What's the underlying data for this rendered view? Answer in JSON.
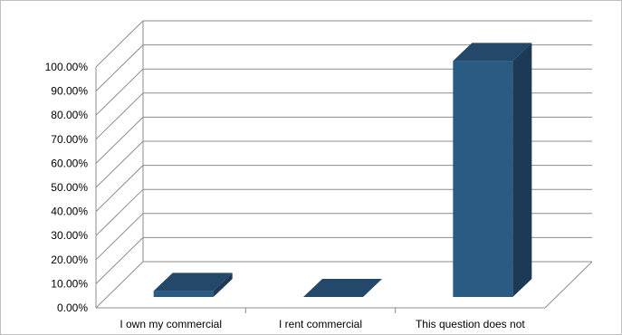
{
  "chart_data": {
    "type": "bar",
    "title": "",
    "xlabel": "",
    "ylabel": "",
    "categories": [
      "I own my commercial",
      "I rent commercial",
      "This question does not"
    ],
    "values": [
      2.5,
      0,
      98
    ],
    "value_unit": "percent",
    "ylim": [
      0,
      100
    ],
    "yticks": [
      "0.00%",
      "10.00%",
      "20.00%",
      "30.00%",
      "40.00%",
      "50.00%",
      "60.00%",
      "70.00%",
      "80.00%",
      "90.00%",
      "100.00%"
    ],
    "grid": true,
    "legend": "none",
    "style": "3d-column",
    "colors": {
      "bar_front": "#2a5b82",
      "bar_top": "#23486a",
      "bar_side": "#1c3a55",
      "gridline": "#8c8c8c"
    }
  }
}
